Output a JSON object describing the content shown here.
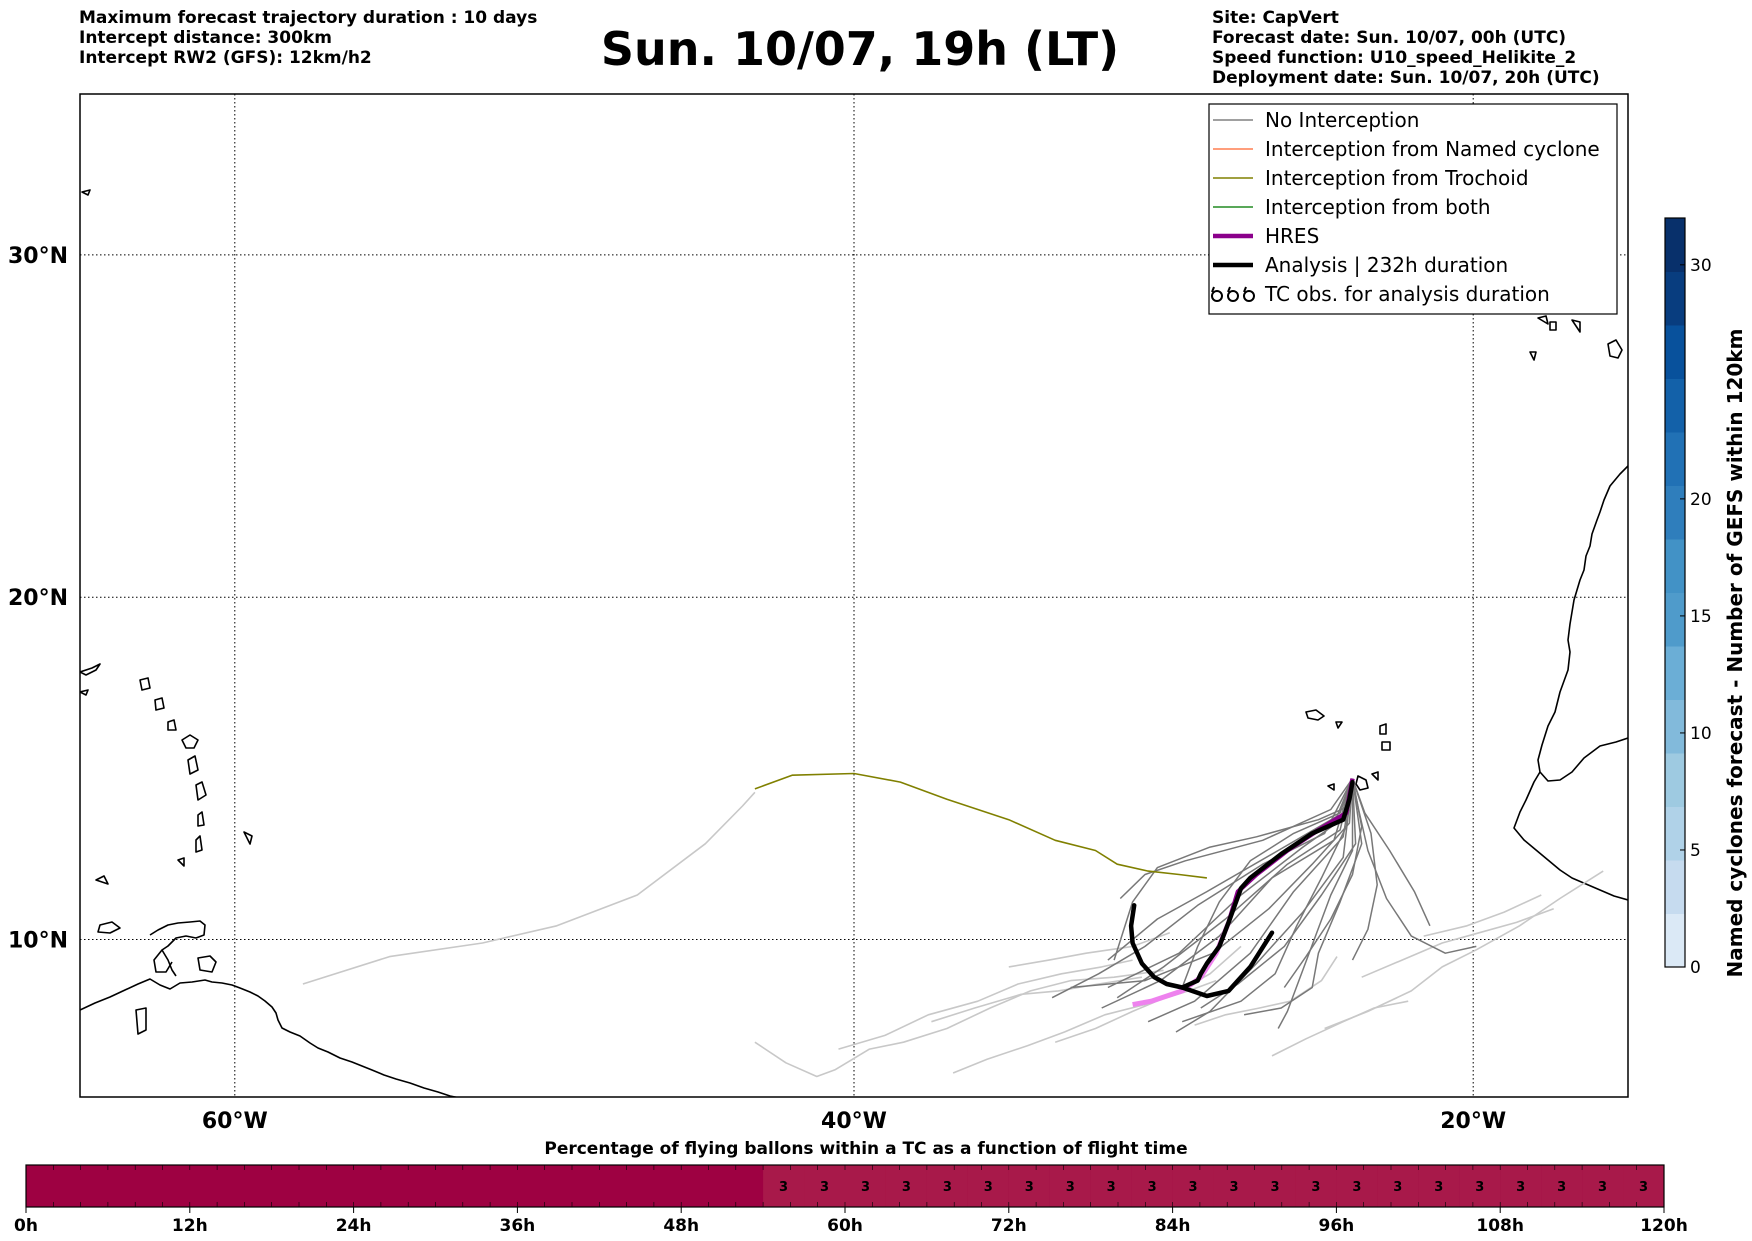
{
  "header": {
    "info_left": [
      "Maximum forecast trajectory duration : 10 days",
      "Intercept distance: 300km",
      "Intercept RW2 (GFS):  12km/h2"
    ],
    "title": "Sun. 10/07, 19h (LT)",
    "info_right": [
      "Site: CapVert",
      "Forecast date: Sun. 10/07, 00h (UTC)",
      "Speed function: U10_speed_Helikite_2",
      "Deployment date: Sun. 10/07, 20h (UTC)"
    ]
  },
  "map": {
    "lon_range": [
      -65,
      -15
    ],
    "lat_range": [
      5.4,
      34.7
    ],
    "lat_ticks": [
      {
        "value": 10,
        "label": "10°N"
      },
      {
        "value": 20,
        "label": "20°N"
      },
      {
        "value": 30,
        "label": "30°N"
      }
    ],
    "lon_ticks": [
      {
        "value": -60,
        "label": "60°W"
      },
      {
        "value": -40,
        "label": "40°W"
      },
      {
        "value": -20,
        "label": "20°W"
      }
    ],
    "grid": true,
    "legend": {
      "position": "top-right",
      "entries": [
        {
          "label": "No Interception",
          "color": "#808080",
          "style": "thin"
        },
        {
          "label": "Interception from Named cyclone",
          "color": "#ff7f50",
          "style": "thin"
        },
        {
          "label": "Interception from Trochoid",
          "color": "#808000",
          "style": "thin"
        },
        {
          "label": "Interception from both",
          "color": "#228b22",
          "style": "thin"
        },
        {
          "label": "HRES",
          "color": "#8b008b",
          "style": "thick"
        },
        {
          "label": "Analysis | 232h duration",
          "color": "#000000",
          "style": "thick"
        },
        {
          "label": "TC obs. for analysis duration",
          "color": "#000000",
          "style": "symbol"
        }
      ]
    },
    "trajectories": {
      "trochoid": [
        [
          -43.2,
          14.4
        ],
        [
          -42,
          14.8
        ],
        [
          -40,
          14.85
        ],
        [
          -38.5,
          14.6
        ],
        [
          -37,
          14.1
        ],
        [
          -35,
          13.5
        ],
        [
          -33.5,
          12.9
        ],
        [
          -32.2,
          12.6
        ],
        [
          -31.5,
          12.2
        ],
        [
          -30.5,
          12.0
        ],
        [
          -29.5,
          11.9
        ],
        [
          -28.6,
          11.8
        ]
      ],
      "hres": [
        [
          -23.9,
          14.7
        ],
        [
          -24,
          14.2
        ],
        [
          -24.1,
          13.7
        ],
        [
          -25,
          13.2
        ],
        [
          -26,
          12.6
        ],
        [
          -27,
          11.9
        ],
        [
          -27.6,
          11.4
        ],
        [
          -27.9,
          10.5
        ],
        [
          -28.3,
          9.6
        ],
        [
          -28.8,
          8.9
        ],
        [
          -29.4,
          8.5
        ],
        [
          -30.4,
          8.2
        ],
        [
          -31,
          8.1
        ]
      ],
      "analysis": [
        [
          -23.9,
          14.6
        ],
        [
          -24,
          14.1
        ],
        [
          -24.2,
          13.5
        ],
        [
          -25.2,
          13.1
        ],
        [
          -26.2,
          12.5
        ],
        [
          -27.2,
          11.8
        ],
        [
          -27.5,
          11.5
        ],
        [
          -27.9,
          10.5
        ],
        [
          -28.2,
          9.8
        ],
        [
          -28.6,
          9.3
        ],
        [
          -28.8,
          9.0
        ],
        [
          -28.9,
          8.8
        ],
        [
          -29.4,
          8.6
        ],
        [
          -29.9,
          8.7
        ],
        [
          -30.3,
          8.9
        ],
        [
          -30.7,
          9.3
        ],
        [
          -31,
          9.9
        ],
        [
          -31.05,
          10.4
        ],
        [
          -30.95,
          11.0
        ]
      ],
      "analysis_tail": [
        [
          -29.4,
          8.6
        ],
        [
          -28.6,
          8.35
        ],
        [
          -27.9,
          8.5
        ],
        [
          -27.2,
          9.2
        ],
        [
          -26.5,
          10.2
        ]
      ],
      "no_interception": [
        [
          [
            -23.9,
            14.7
          ],
          [
            -24.1,
            13.6
          ],
          [
            -25.5,
            12.7
          ],
          [
            -27.5,
            11.3
          ],
          [
            -29.5,
            9.6
          ],
          [
            -31.8,
            8.6
          ]
        ],
        [
          [
            -23.9,
            14.7
          ],
          [
            -24.3,
            13.2
          ],
          [
            -26,
            12.2
          ],
          [
            -28,
            10.6
          ],
          [
            -30,
            9.2
          ],
          [
            -31.5,
            8.3
          ]
        ],
        [
          [
            -23.9,
            14.7
          ],
          [
            -24.5,
            12.9
          ],
          [
            -26.5,
            11.8
          ],
          [
            -28.2,
            10.1
          ],
          [
            -30.1,
            8.8
          ],
          [
            -32,
            8.0
          ]
        ],
        [
          [
            -23.9,
            14.7
          ],
          [
            -24.2,
            13.0
          ],
          [
            -25.8,
            11.4
          ],
          [
            -27.2,
            9.6
          ],
          [
            -29,
            8.2
          ],
          [
            -30.5,
            7.6
          ]
        ],
        [
          [
            -23.9,
            14.7
          ],
          [
            -23.8,
            12.8
          ],
          [
            -24.9,
            11.3
          ],
          [
            -26.1,
            9.8
          ],
          [
            -27.6,
            8.7
          ],
          [
            -28.8,
            8.0
          ]
        ],
        [
          [
            -23.9,
            14.7
          ],
          [
            -24.0,
            13.4
          ],
          [
            -25.2,
            12.2
          ],
          [
            -26.6,
            10.9
          ],
          [
            -28.4,
            9.6
          ],
          [
            -30.6,
            8.8
          ],
          [
            -33,
            8.6
          ]
        ],
        [
          [
            -23.9,
            14.7
          ],
          [
            -24.4,
            13.6
          ],
          [
            -26.3,
            12.6
          ],
          [
            -28.6,
            11.4
          ],
          [
            -30.2,
            10.6
          ],
          [
            -31.8,
            9.4
          ]
        ],
        [
          [
            -23.9,
            14.7
          ],
          [
            -24.6,
            13.8
          ],
          [
            -26.8,
            12.9
          ],
          [
            -29.3,
            12.3
          ],
          [
            -30.6,
            11.9
          ],
          [
            -31.4,
            11.2
          ]
        ],
        [
          [
            -23.9,
            14.7
          ],
          [
            -23.6,
            13.3
          ],
          [
            -23.9,
            11.9
          ],
          [
            -24.6,
            10.6
          ],
          [
            -25.4,
            9.5
          ],
          [
            -26.1,
            8.6
          ]
        ],
        [
          [
            -23.9,
            14.7
          ],
          [
            -23.3,
            13.1
          ],
          [
            -23.1,
            11.6
          ],
          [
            -23.4,
            10.3
          ],
          [
            -23.9,
            9.4
          ]
        ],
        [
          [
            -23.9,
            14.7
          ],
          [
            -23.5,
            13.7
          ],
          [
            -22.7,
            12.6
          ],
          [
            -21.9,
            11.4
          ],
          [
            -21.4,
            10.4
          ]
        ],
        [
          [
            -23.9,
            14.7
          ],
          [
            -23.9,
            12.6
          ],
          [
            -24.6,
            11.3
          ],
          [
            -25.3,
            9.6
          ],
          [
            -26.0,
            7.9
          ],
          [
            -26.3,
            7.4
          ]
        ],
        [
          [
            -23.9,
            14.7
          ],
          [
            -24.2,
            12.4
          ],
          [
            -25.5,
            10.8
          ],
          [
            -27.0,
            9.3
          ],
          [
            -28.5,
            7.9
          ],
          [
            -29.6,
            7.3
          ]
        ],
        [
          [
            -23.9,
            14.7
          ],
          [
            -24.0,
            13.9
          ],
          [
            -25.0,
            13.5
          ],
          [
            -27.0,
            13.0
          ],
          [
            -28.5,
            12.7
          ],
          [
            -30.2,
            12.1
          ],
          [
            -31.0,
            11.1
          ],
          [
            -31.6,
            9.4
          ]
        ],
        [
          [
            -23.9,
            14.7
          ],
          [
            -23.7,
            13.8
          ],
          [
            -23.4,
            12.6
          ],
          [
            -22.8,
            11.2
          ],
          [
            -22.0,
            10.1
          ],
          [
            -20.9,
            9.6
          ],
          [
            -19.9,
            9.8
          ]
        ],
        [
          [
            -23.9,
            14.7
          ],
          [
            -23.6,
            12.8
          ],
          [
            -24.3,
            11.1
          ],
          [
            -25.0,
            9.6
          ],
          [
            -25.2,
            8.6
          ],
          [
            -26.2,
            8.0
          ],
          [
            -27.4,
            7.8
          ]
        ],
        [
          [
            -23.9,
            14.7
          ],
          [
            -24.8,
            13.1
          ],
          [
            -26.8,
            12.2
          ],
          [
            -28.9,
            11.0
          ],
          [
            -30.6,
            9.8
          ],
          [
            -32.1,
            9.0
          ],
          [
            -33.6,
            8.3
          ]
        ],
        [
          [
            -23.9,
            14.7
          ],
          [
            -24.3,
            13.7
          ],
          [
            -25.8,
            13.1
          ],
          [
            -27.2,
            12.3
          ],
          [
            -28.2,
            11.1
          ],
          [
            -28.9,
            9.8
          ],
          [
            -29.4,
            8.6
          ]
        ],
        [
          [
            -23.9,
            14.7
          ],
          [
            -24.1,
            13.3
          ],
          [
            -24.9,
            11.8
          ],
          [
            -25.7,
            10.4
          ],
          [
            -26.4,
            9.0
          ],
          [
            -27.5,
            8.2
          ],
          [
            -29.4,
            7.6
          ]
        ]
      ],
      "light": [
        [
          [
            -57.8,
            8.7
          ],
          [
            -55,
            9.5
          ],
          [
            -52,
            9.9
          ],
          [
            -49.6,
            10.4
          ],
          [
            -47,
            11.3
          ],
          [
            -44.8,
            12.8
          ],
          [
            -43.6,
            13.9
          ],
          [
            -43.2,
            14.3
          ]
        ],
        [
          [
            -43.2,
            7.0
          ],
          [
            -42.2,
            6.4
          ],
          [
            -41.2,
            6.0
          ],
          [
            -40.6,
            6.2
          ],
          [
            -39.5,
            6.8
          ],
          [
            -38.4,
            7.0
          ],
          [
            -37,
            7.4
          ],
          [
            -35.6,
            8.0
          ],
          [
            -34.3,
            8.5
          ],
          [
            -33,
            8.8
          ],
          [
            -31.6,
            8.9
          ],
          [
            -30,
            9.1
          ]
        ],
        [
          [
            -36.8,
            6.1
          ],
          [
            -35.7,
            6.5
          ],
          [
            -34.4,
            6.9
          ],
          [
            -33.2,
            7.3
          ],
          [
            -31.9,
            7.8
          ],
          [
            -30.6,
            8.1
          ],
          [
            -29.2,
            8.5
          ],
          [
            -28.3,
            8.8
          ]
        ],
        [
          [
            -40.5,
            6.8
          ],
          [
            -39,
            7.2
          ],
          [
            -37.6,
            7.8
          ],
          [
            -36,
            8.2
          ],
          [
            -34.7,
            8.7
          ],
          [
            -33.3,
            9.0
          ],
          [
            -32,
            9.2
          ],
          [
            -31,
            9.4
          ]
        ],
        [
          [
            -35,
            9.2
          ],
          [
            -33.7,
            9.4
          ],
          [
            -32.5,
            9.6
          ],
          [
            -31,
            9.8
          ],
          [
            -29.8,
            10.2
          ]
        ],
        [
          [
            -33.5,
            7.0
          ],
          [
            -32.2,
            7.4
          ],
          [
            -31,
            7.9
          ],
          [
            -29.7,
            8.4
          ],
          [
            -28.5,
            9.0
          ],
          [
            -27.5,
            9.8
          ]
        ],
        [
          [
            -37.5,
            7.6
          ],
          [
            -36.1,
            8.0
          ],
          [
            -34.6,
            8.4
          ],
          [
            -33.4,
            8.5
          ],
          [
            -32.1,
            8.7
          ],
          [
            -30.7,
            8.9
          ]
        ],
        [
          [
            -26.5,
            6.6
          ],
          [
            -25.4,
            7.1
          ],
          [
            -24.2,
            7.6
          ],
          [
            -23.2,
            8.0
          ],
          [
            -22.1,
            8.2
          ]
        ],
        [
          [
            -24.8,
            7.4
          ],
          [
            -23.4,
            7.9
          ],
          [
            -22.0,
            8.5
          ],
          [
            -21.0,
            9.2
          ],
          [
            -19.9,
            9.7
          ],
          [
            -18.5,
            10.4
          ],
          [
            -17.2,
            11.2
          ],
          [
            -15.8,
            12.0
          ]
        ],
        [
          [
            -21.6,
            10.1
          ],
          [
            -20.2,
            10.4
          ],
          [
            -19.0,
            10.8
          ],
          [
            -17.8,
            11.3
          ]
        ],
        [
          [
            -23.6,
            8.9
          ],
          [
            -22.3,
            9.4
          ],
          [
            -21.0,
            9.9
          ],
          [
            -19.8,
            10.2
          ],
          [
            -18.6,
            10.5
          ],
          [
            -17.4,
            10.9
          ]
        ],
        [
          [
            -29.0,
            7.5
          ],
          [
            -28.0,
            7.8
          ],
          [
            -26.9,
            8.0
          ],
          [
            -25.9,
            8.2
          ],
          [
            -24.9,
            8.8
          ],
          [
            -24.4,
            9.5
          ]
        ]
      ]
    },
    "colorbar": {
      "label": "Named cyclones forecast - Number of GEFS within 120km",
      "min": 0,
      "max": 32,
      "ticks": [
        0,
        5,
        10,
        15,
        20,
        30
      ],
      "colors": [
        "#dbe9f6",
        "#c6dbef",
        "#b0d2e8",
        "#9ecae1",
        "#82badb",
        "#6baed6",
        "#4f9bcb",
        "#4292c6",
        "#2f7ebc",
        "#2171b5",
        "#1361a9",
        "#08519c",
        "#083d7f",
        "#08306b"
      ]
    }
  },
  "flight_bar": {
    "title": "Percentage of flying ballons within a TC as a function of flight time",
    "hours": [
      0,
      12,
      24,
      36,
      48,
      60,
      72,
      84,
      96,
      108,
      120
    ],
    "tick_labels": [
      "0h",
      "12h",
      "24h",
      "36h",
      "48h",
      "60h",
      "72h",
      "84h",
      "96h",
      "108h",
      "120h"
    ],
    "segment_start_hour": 54,
    "segment_values": [
      "3",
      "3",
      "3",
      "3",
      "3",
      "3",
      "3",
      "3",
      "3",
      "3",
      "3",
      "3",
      "3",
      "3",
      "3",
      "3",
      "3",
      "3",
      "3",
      "3",
      "3",
      "3"
    ],
    "base_color": "#9e0142",
    "segment_color": "#a8194a"
  }
}
